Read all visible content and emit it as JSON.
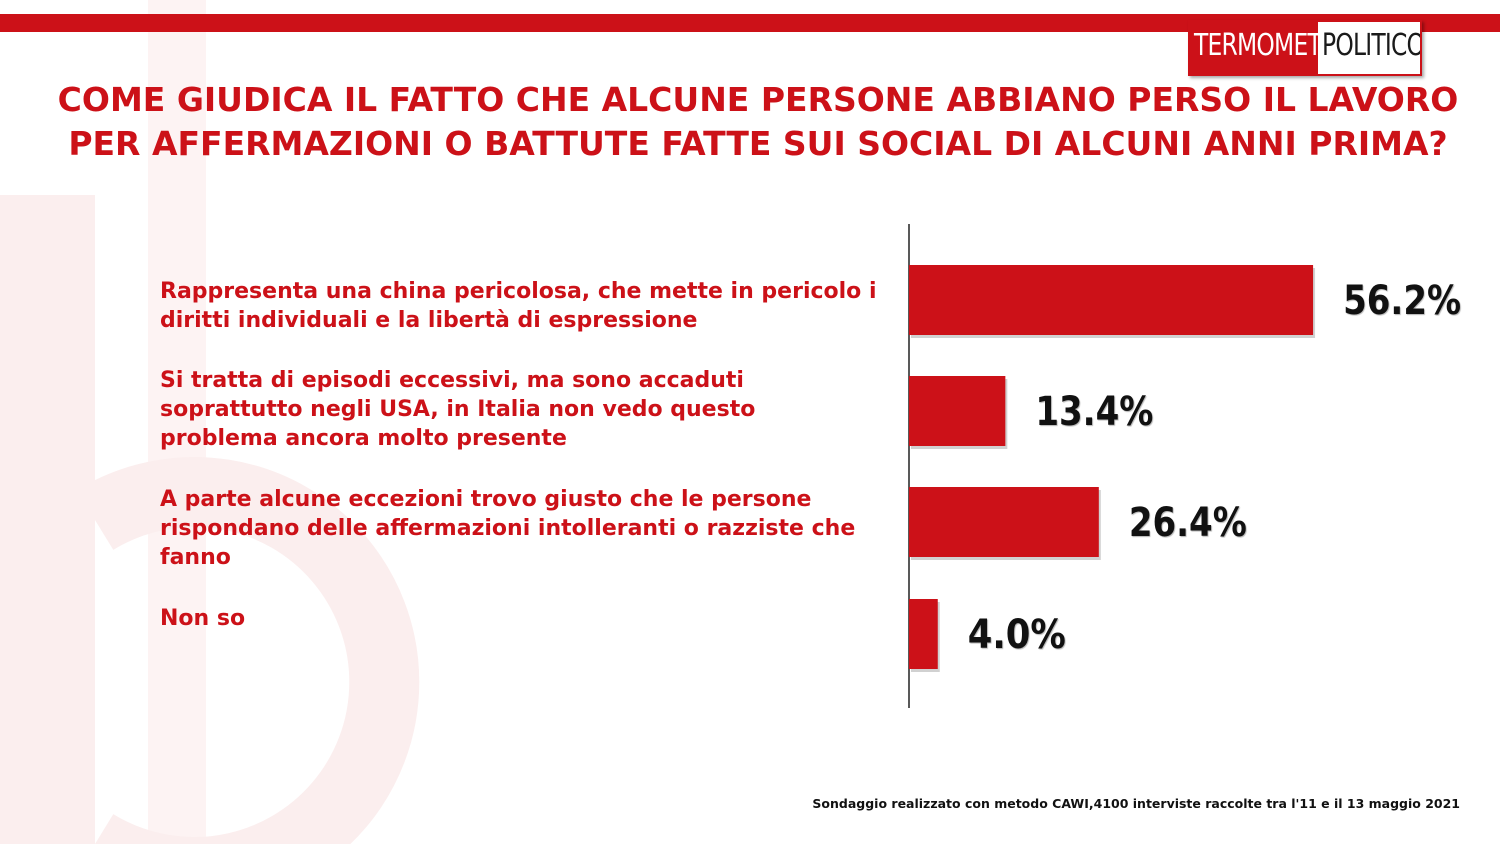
{
  "brand": {
    "logo_left": "TERMOMETRO",
    "logo_right": "POLITICO",
    "accent_color": "#cc1118"
  },
  "chart_data": {
    "type": "bar",
    "orientation": "horizontal",
    "title": "COME GIUDICA IL FATTO CHE ALCUNE PERSONE ABBIANO PERSO IL LAVORO PER AFFERMAZIONI O BATTUTE FATTE SUI SOCIAL DI ALCUNI ANNI PRIMA?",
    "categories": [
      "Rappresenta una china pericolosa, che mette in pericolo i diritti individuali e la libertà  di espressione",
      "Si tratta di episodi eccessivi, ma sono accaduti soprattutto negli USA, in Italia non vedo questo problema ancora molto presente",
      "A parte alcune eccezioni trovo giusto che le persone rispondano delle affermazioni intolleranti o razziste che fanno",
      "Non so"
    ],
    "values": [
      56.2,
      13.4,
      26.4,
      4.0
    ],
    "value_labels": [
      "56.2%",
      "13.4%",
      "26.4%",
      "4.0%"
    ],
    "unit": "%",
    "xlim": [
      0,
      100
    ],
    "bar_color": "#cc1118",
    "grid": false,
    "legend": "none"
  },
  "footnote": "Sondaggio realizzato con metodo CAWI,4100 interviste raccolte tra l'11  e il 13 maggio 2021"
}
